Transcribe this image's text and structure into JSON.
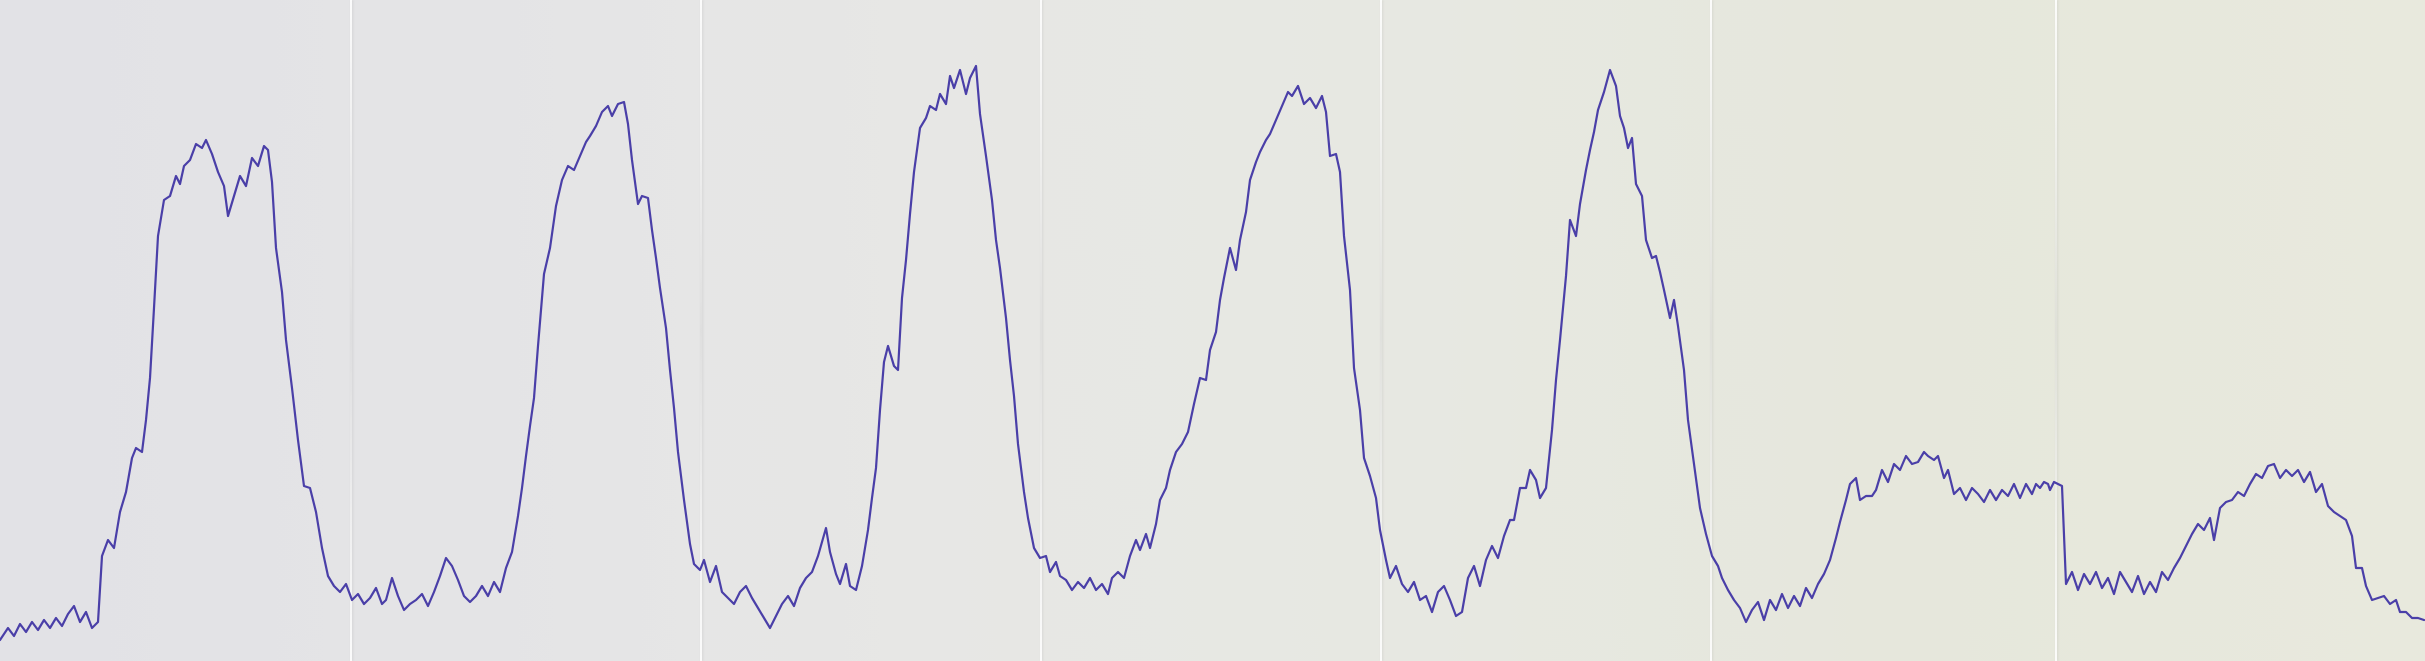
{
  "trace": {
    "color": "#4a3fa8",
    "description_hidden": true
  }
}
